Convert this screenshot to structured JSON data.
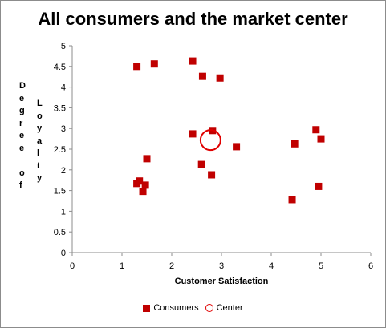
{
  "chart_data": {
    "type": "scatter",
    "title": "All consumers and the market center",
    "xlabel": "Customer Satisfaction",
    "ylabel": "Degree of Loyalty",
    "xlim": [
      0,
      6
    ],
    "ylim": [
      0,
      5
    ],
    "x_ticks": [
      "0",
      "1",
      "2",
      "3",
      "4",
      "5",
      "6"
    ],
    "y_ticks": [
      "0",
      "0.5",
      "1",
      "1.5",
      "2",
      "2.5",
      "3",
      "3.5",
      "4",
      "4.5",
      "5"
    ],
    "grid": false,
    "legend": "bottom",
    "series": [
      {
        "name": "Consumers",
        "marker": "square",
        "color": "#c00000",
        "points": [
          {
            "x": 1.3,
            "y": 4.5
          },
          {
            "x": 1.65,
            "y": 4.56
          },
          {
            "x": 2.42,
            "y": 4.63
          },
          {
            "x": 2.62,
            "y": 4.26
          },
          {
            "x": 2.97,
            "y": 4.22
          },
          {
            "x": 2.42,
            "y": 2.87
          },
          {
            "x": 2.82,
            "y": 2.95
          },
          {
            "x": 3.3,
            "y": 2.56
          },
          {
            "x": 1.5,
            "y": 2.27
          },
          {
            "x": 2.6,
            "y": 2.13
          },
          {
            "x": 2.8,
            "y": 1.88
          },
          {
            "x": 1.35,
            "y": 1.73
          },
          {
            "x": 1.3,
            "y": 1.67
          },
          {
            "x": 1.47,
            "y": 1.63
          },
          {
            "x": 1.42,
            "y": 1.48
          },
          {
            "x": 4.9,
            "y": 2.97
          },
          {
            "x": 5.0,
            "y": 2.75
          },
          {
            "x": 4.47,
            "y": 2.63
          },
          {
            "x": 4.42,
            "y": 1.28
          },
          {
            "x": 4.95,
            "y": 1.6
          }
        ]
      },
      {
        "name": "Center",
        "marker": "circle",
        "color": "#e00000",
        "points": [
          {
            "x": 2.78,
            "y": 2.72
          }
        ]
      }
    ]
  }
}
